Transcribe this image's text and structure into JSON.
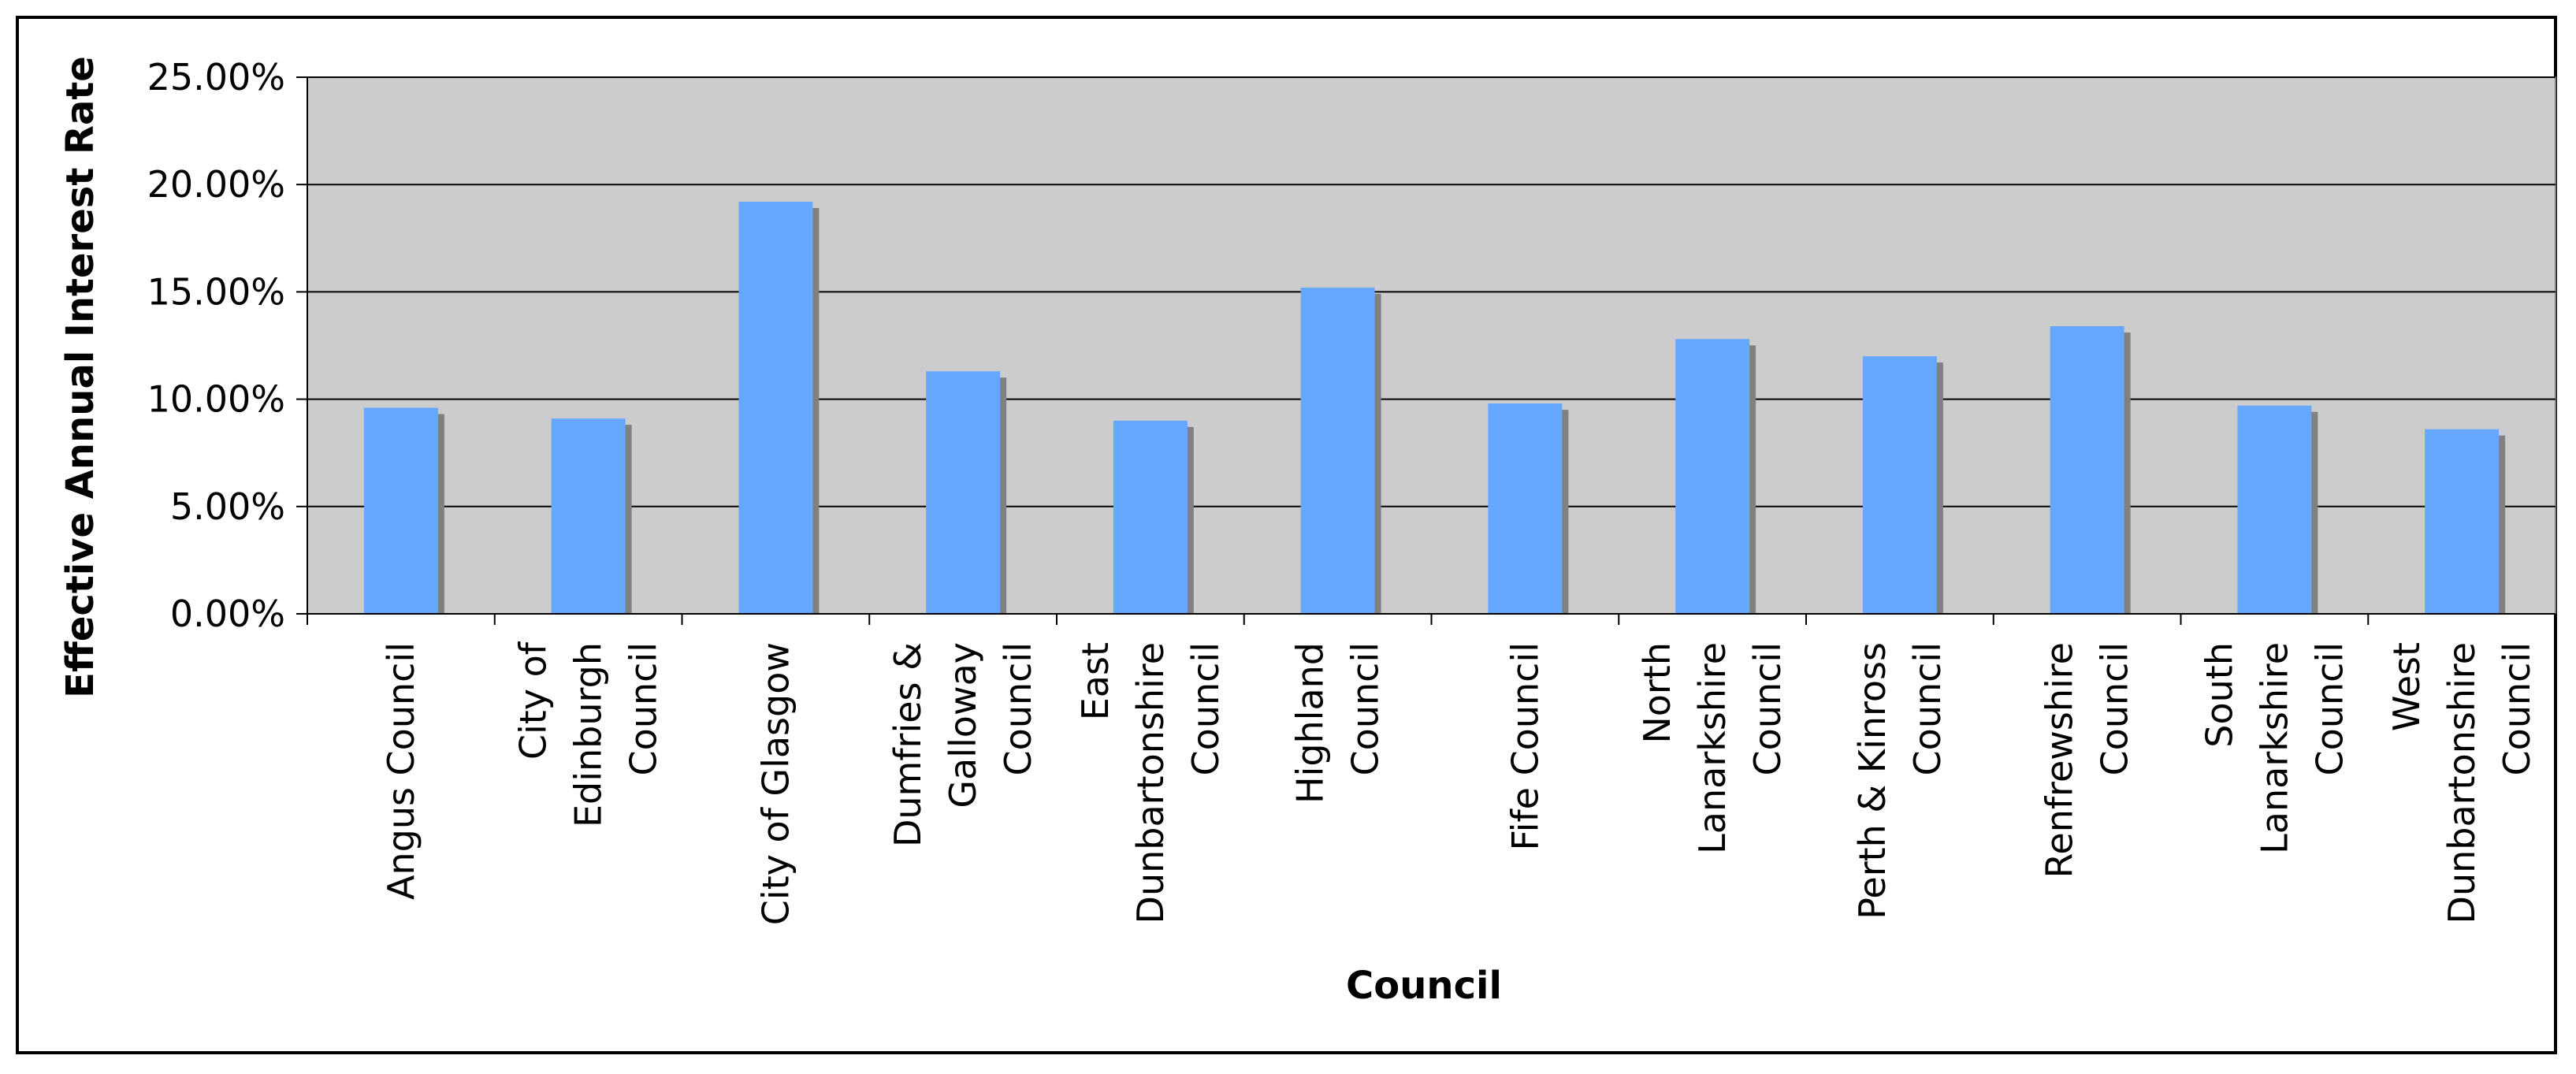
{
  "chart_data": {
    "type": "bar",
    "title": "",
    "xlabel": "Council",
    "ylabel": "Effective Annual Interest Rate",
    "categories": [
      [
        "Angus Council"
      ],
      [
        "City of",
        "Edinburgh",
        "Council"
      ],
      [
        "City of Glasgow"
      ],
      [
        "Dumfries &",
        "Galloway",
        "Council"
      ],
      [
        "East",
        "Dunbartonshire",
        "Council"
      ],
      [
        "Highland",
        "Council"
      ],
      [
        "Fife Council"
      ],
      [
        "North",
        "Lanarkshire",
        "Council"
      ],
      [
        "Perth & Kinross",
        "Council"
      ],
      [
        "Renfrewshire",
        "Council"
      ],
      [
        "South",
        "Lanarkshire",
        "Council"
      ],
      [
        "West",
        "Dunbartonshire",
        "Council"
      ]
    ],
    "values": [
      9.6,
      9.1,
      19.2,
      11.3,
      9.0,
      15.2,
      9.8,
      12.8,
      12.0,
      13.4,
      9.7,
      8.6
    ],
    "ylim": [
      0,
      25
    ],
    "yticks": [
      "0.00%",
      "5.00%",
      "10.00%",
      "15.00%",
      "20.00%",
      "25.00%"
    ],
    "grid": true,
    "legend": "none",
    "colors": {
      "bar": "#66a8ff",
      "shadow": "#808080",
      "plot_bg": "#cccccc",
      "grid": "#000000"
    }
  }
}
